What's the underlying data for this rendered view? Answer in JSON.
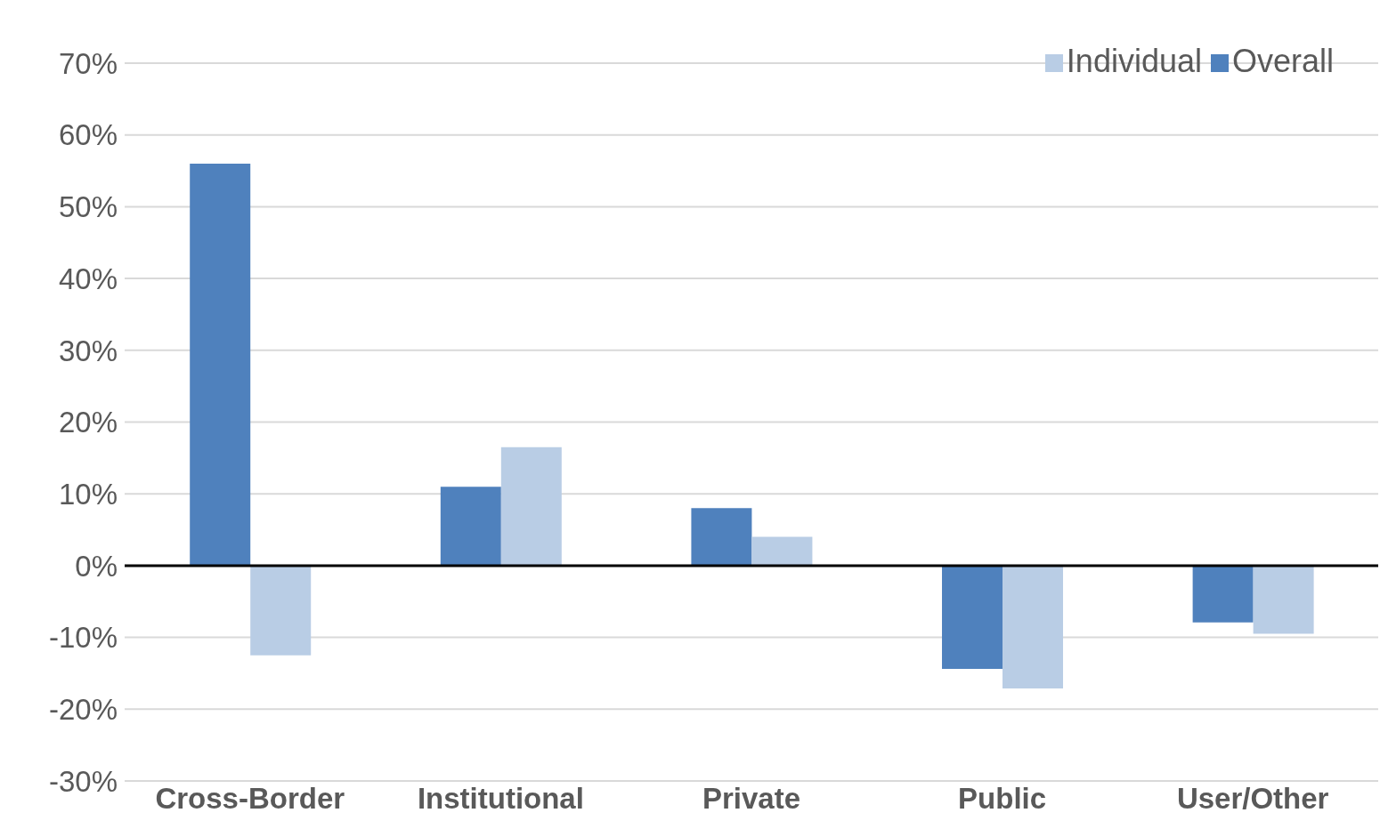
{
  "chart_data": {
    "type": "bar",
    "categories": [
      "Cross-Border",
      "Institutional",
      "Private",
      "Public",
      "User/Other"
    ],
    "series": [
      {
        "name": "Overall",
        "color": "#4f81bd",
        "values": [
          56,
          11,
          8,
          -14.4,
          -7.9
        ]
      },
      {
        "name": "Individual",
        "color": "#b9cde5",
        "values": [
          -12.5,
          16.5,
          4,
          -17.1,
          -9.5
        ]
      }
    ],
    "ylim": [
      -30,
      70
    ],
    "yticks": [
      {
        "value": -30,
        "label": "-30%"
      },
      {
        "value": -20,
        "label": "-20%"
      },
      {
        "value": -10,
        "label": "-10%"
      },
      {
        "value": 0,
        "label": "0%"
      },
      {
        "value": 10,
        "label": "10%"
      },
      {
        "value": 20,
        "label": "20%"
      },
      {
        "value": 30,
        "label": "30%"
      },
      {
        "value": 40,
        "label": "40%"
      },
      {
        "value": 50,
        "label": "50%"
      },
      {
        "value": 60,
        "label": "60%"
      },
      {
        "value": 70,
        "label": "70%"
      }
    ],
    "grid": "y",
    "legend": "top right"
  }
}
